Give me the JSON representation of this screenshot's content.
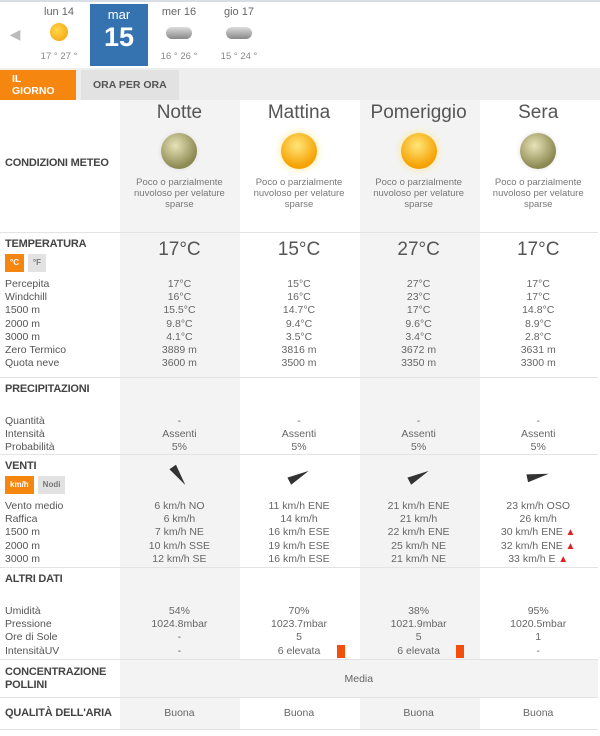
{
  "days": [
    {
      "name": "lun 14",
      "temps": "17 ° 27 °",
      "icon": "sun-icon"
    },
    {
      "name": "mar",
      "num": "15",
      "selected": true
    },
    {
      "name": "mer 16",
      "temps": "16 ° 26 °",
      "icon": "rain-cloud-icon"
    },
    {
      "name": "gio 17",
      "temps": "15 ° 24 °",
      "icon": "storm-cloud-icon"
    }
  ],
  "tabs": [
    {
      "label": "IL GIORNO",
      "active": true
    },
    {
      "label": "ORA PER ORA",
      "active": false
    }
  ],
  "periods": [
    "Notte",
    "Mattina",
    "Pomeriggio",
    "Sera"
  ],
  "conditions": {
    "title": "CONDIZIONI METEO",
    "icons": [
      "moon-veiled-icon",
      "sun-veiled-icon",
      "sun-veiled-icon",
      "moon-veiled-icon"
    ],
    "desc": [
      "Poco o parzialmente nuvoloso per velature sparse",
      "Poco o parzialmente nuvoloso per velature sparse",
      "Poco o parzialmente nuvoloso per velature sparse",
      "Poco o parzialmente nuvoloso per velature sparse"
    ]
  },
  "sections": [
    {
      "key": "temp",
      "title": "TEMPERATURA",
      "units": [
        {
          "label": "°C",
          "active": true
        },
        {
          "label": "°F",
          "active": false
        }
      ],
      "big": [
        "17°C",
        "15°C",
        "27°C",
        "17°C"
      ],
      "rows": [
        {
          "label": "Percepita",
          "values": [
            "17°C",
            "15°C",
            "27°C",
            "17°C"
          ]
        },
        {
          "label": "Windchill",
          "values": [
            "16°C",
            "16°C",
            "23°C",
            "17°C"
          ]
        },
        {
          "label": "1500 m",
          "values": [
            "15.5°C",
            "14.7°C",
            "17°C",
            "14.8°C"
          ]
        },
        {
          "label": "2000 m",
          "values": [
            "9.8°C",
            "9.4°C",
            "9.6°C",
            "8.9°C"
          ]
        },
        {
          "label": "3000 m",
          "values": [
            "4.1°C",
            "3.5°C",
            "3.4°C",
            "2.8°C"
          ]
        },
        {
          "label": "Zero Termico",
          "values": [
            "3889 m",
            "3816 m",
            "3672 m",
            "3631 m"
          ]
        },
        {
          "label": "Quota neve",
          "values": [
            "3600 m",
            "3500 m",
            "3350 m",
            "3300 m"
          ]
        }
      ]
    },
    {
      "key": "prec",
      "title": "PRECIPITAZIONI",
      "rows": [
        {
          "label": "Quantità",
          "values": [
            "-",
            "-",
            "-",
            "-"
          ]
        },
        {
          "label": "Intensità",
          "values": [
            "Assenti",
            "Assenti",
            "Assenti",
            "Assenti"
          ]
        },
        {
          "label": "Probabilità",
          "values": [
            "5%",
            "5%",
            "5%",
            "5%"
          ]
        }
      ]
    },
    {
      "key": "wind",
      "title": "VENTI",
      "units": [
        {
          "label": "km/h",
          "active": true
        },
        {
          "label": "Nodi",
          "active": false
        }
      ],
      "wind_dirs": [
        "NO",
        "ENE",
        "ENE",
        "OSO"
      ],
      "rows": [
        {
          "label": "Vento medio",
          "values": [
            "6 km/h  NO",
            "11 km/h ENE",
            "21 km/h ENE",
            "23 km/h OSO"
          ]
        },
        {
          "label": "Raffica",
          "values": [
            "6 km/h",
            "14 km/h",
            "21 km/h",
            "26 km/h"
          ]
        },
        {
          "label": "1500 m",
          "values": [
            "7 km/h NE",
            "16 km/h ESE",
            "22 km/h ENE",
            "30 km/h ENE"
          ],
          "warn": [
            false,
            false,
            false,
            true
          ]
        },
        {
          "label": "2000 m",
          "values": [
            "10 km/h SSE",
            "19 km/h ESE",
            "25 km/h NE",
            "32 km/h ENE"
          ],
          "warn": [
            false,
            false,
            false,
            true
          ]
        },
        {
          "label": "3000 m",
          "values": [
            "12 km/h SE",
            "16 km/h ESE",
            "21 km/h NE",
            "33 km/h E"
          ],
          "warn": [
            false,
            false,
            false,
            true
          ]
        }
      ]
    },
    {
      "key": "altri",
      "title": "ALTRI DATI",
      "rows": [
        {
          "label": "Umidità",
          "values": [
            "54%",
            "70%",
            "38%",
            "95%"
          ]
        },
        {
          "label": "Pressione",
          "values": [
            "1024.8mbar",
            "1023.7mbar",
            "1021.9mbar",
            "1020.5mbar"
          ]
        },
        {
          "label": "Ore di Sole",
          "values": [
            "-",
            "5",
            "5",
            "1"
          ]
        },
        {
          "label": "IntensitàUV",
          "values": [
            "-",
            "6 elevata",
            "6 elevata",
            "-"
          ],
          "uv": [
            false,
            true,
            true,
            false
          ]
        }
      ]
    }
  ],
  "pollini": {
    "title": "CONCENTRAZIONE POLLINI",
    "value": "Media"
  },
  "aria": {
    "title": "QUALITÀ DELL'ARIA",
    "values": [
      "Buona",
      "Buona",
      "Buona",
      "Buona"
    ]
  },
  "colors": {
    "accent": "#f5860f",
    "selected_day": "#3572b0",
    "uv_high": "#f24e0c",
    "warning": "#dd2222"
  }
}
